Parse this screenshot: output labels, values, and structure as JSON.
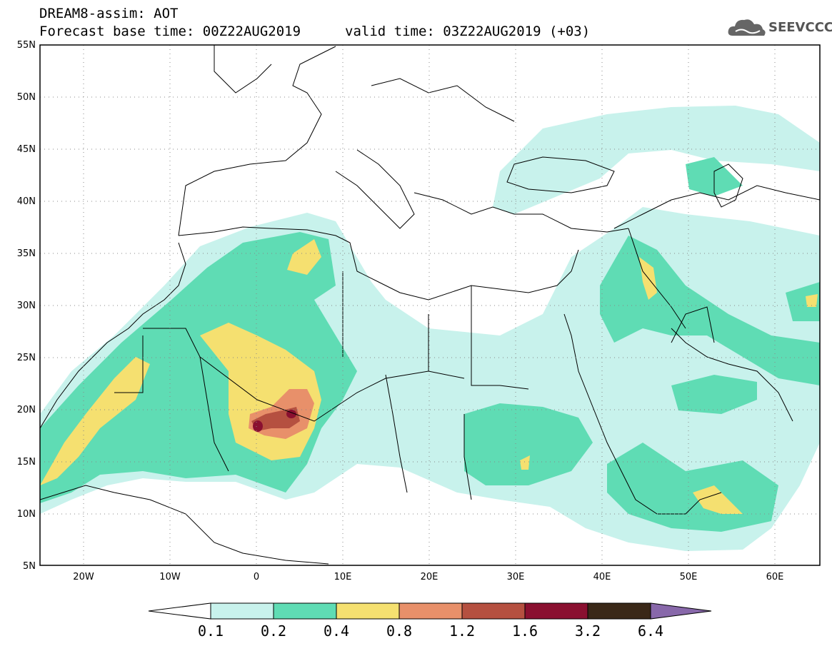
{
  "header": {
    "title": "DREAM8-assim: AOT",
    "base_time": "Forecast base time: 00Z22AUG2019",
    "valid_time": "valid time: 03Z22AUG2019 (+03)"
  },
  "logo": {
    "text": "SEEVCCC",
    "icon": "cloud-icon"
  },
  "map": {
    "lon_range": [
      -25,
      65
    ],
    "lat_range": [
      5,
      55
    ],
    "lat_ticks": [
      "5N",
      "10N",
      "15N",
      "20N",
      "25N",
      "30N",
      "35N",
      "40N",
      "45N",
      "50N",
      "55N"
    ],
    "lon_ticks": [
      "20W",
      "10W",
      "0",
      "10E",
      "20E",
      "30E",
      "40E",
      "50E",
      "60E"
    ]
  },
  "colorbar": {
    "labels": [
      "0.1",
      "0.2",
      "0.4",
      "0.8",
      "1.2",
      "1.6",
      "3.2",
      "6.4"
    ],
    "colors": [
      "#c8f2ec",
      "#5fdcb4",
      "#f5e070",
      "#e8906a",
      "#b55040",
      "#8a1030",
      "#3a2818",
      "#8868aa"
    ]
  }
}
